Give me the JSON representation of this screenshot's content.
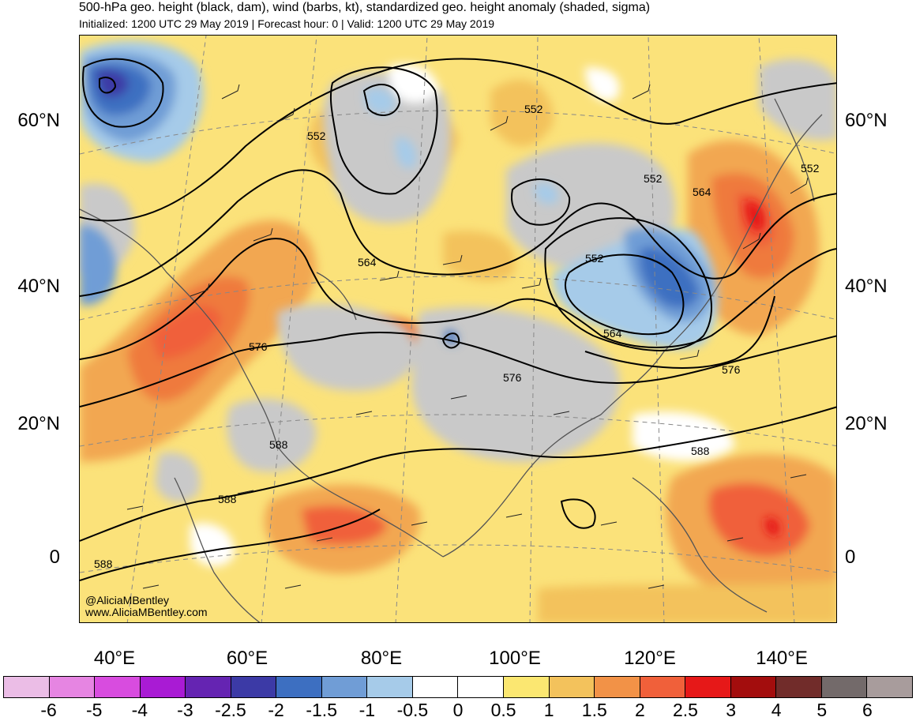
{
  "header": {
    "title": "500-hPa geo. height (black, dam), wind (barbs, kt), standardized geo. height anomaly (shaded, sigma)",
    "subtitle": "Initialized: 1200 UTC 29 May 2019 | Forecast hour: 0 | Valid: 1200 UTC 29 May 2019"
  },
  "map": {
    "lat_labels": [
      "60°N",
      "40°N",
      "20°N",
      "0"
    ],
    "lon_labels": [
      "40°E",
      "60°E",
      "80°E",
      "100°E",
      "120°E",
      "140°E"
    ],
    "contour_labels": [
      "552",
      "552",
      "552",
      "552",
      "552",
      "564",
      "564",
      "564",
      "576",
      "576",
      "576",
      "588",
      "588",
      "588",
      "588"
    ],
    "credit": [
      "@AliciaMBentley",
      "www.AliciaMBentley.com"
    ]
  },
  "colorbar": {
    "labels": [
      "-6",
      "-5",
      "-4",
      "-3",
      "-2.5",
      "-2",
      "-1.5",
      "-1",
      "-0.5",
      "0",
      "0.5",
      "1",
      "1.5",
      "2",
      "2.5",
      "3",
      "4",
      "5",
      "6"
    ],
    "colors": [
      "#ebbde6",
      "#e685e2",
      "#d84cdf",
      "#a91bd4",
      "#6524b2",
      "#3c3aa6",
      "#3d6fc1",
      "#709dd6",
      "#a6cbe9",
      "#ffffff",
      "#ffffff",
      "#fbe771",
      "#f3c25c",
      "#f29247",
      "#f0603a",
      "#e61818",
      "#a30d0d",
      "#712c2a",
      "#736a6a",
      "#a89c9c"
    ]
  }
}
